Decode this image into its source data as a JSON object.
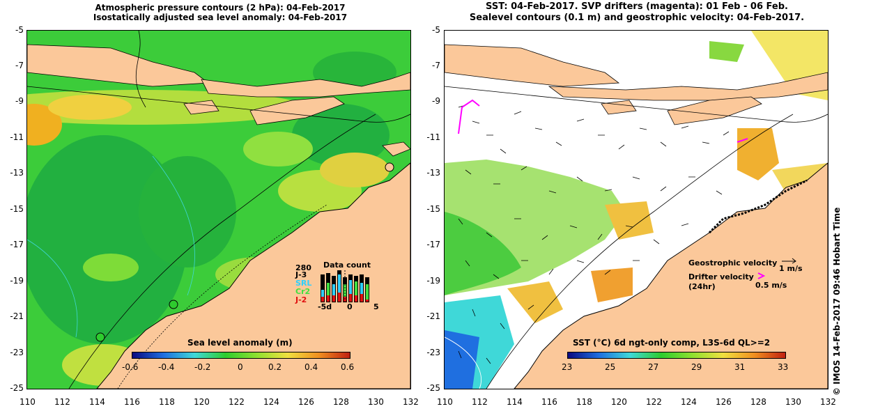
{
  "left_panel": {
    "title_line1": "Atmospheric pressure contours (2 hPa): 04-Feb-2017",
    "title_line2": "Isostatically adjusted sea level anomaly: 04-Feb-2017",
    "colorbar_title": "Sea level anomaly (m)",
    "colorbar_ticks": [
      "-0.6",
      "-0.4",
      "-0.2",
      "0",
      "0.2",
      "0.4",
      "0.6"
    ],
    "colorbar_colors": [
      "#0a0a80",
      "#1f6fe0",
      "#3fd8d8",
      "#2ecc2e",
      "#8ee030",
      "#f0e040",
      "#f09020",
      "#c02010"
    ],
    "data_count": {
      "title": "Data count",
      "max_label": "280",
      "series": [
        {
          "name": "J-3",
          "color": "#000000"
        },
        {
          "name": "SRL",
          "color": "#2fd0ff"
        },
        {
          "name": "Cr2",
          "color": "#40e040"
        },
        {
          "name": "J-2",
          "color": "#e01010"
        }
      ],
      "x_ticks": [
        "-5d",
        "0",
        "5"
      ]
    }
  },
  "right_panel": {
    "title_line1": "SST: 04-Feb-2017. SVP drifters (magenta): 01 Feb - 06 Feb.",
    "title_line2": "Sealevel contours (0.1 m) and geostrophic velocity: 04-Feb-2017.",
    "colorbar_title": "SST (°C) 6d ngt-only comp, L3S-6d QL>=2",
    "colorbar_ticks": [
      "23",
      "25",
      "27",
      "29",
      "31",
      "33"
    ],
    "colorbar_colors": [
      "#0a0a80",
      "#1f6fe0",
      "#3fd8d8",
      "#2ecc2e",
      "#8ee030",
      "#f0e040",
      "#f09020",
      "#c02010"
    ],
    "legend": {
      "geo_label": "Geostrophic velocity",
      "geo_value": "1 m/s",
      "drifter_label": "Drifter velocity",
      "drifter_sub": "(24hr)",
      "drifter_value": "0.5 m/s",
      "drifter_color": "#ff00ff"
    }
  },
  "axes": {
    "x_ticks": [
      "110",
      "112",
      "114",
      "116",
      "118",
      "120",
      "122",
      "124",
      "126",
      "128",
      "130",
      "132"
    ],
    "y_ticks": [
      "-5",
      "-7",
      "-9",
      "-11",
      "-13",
      "-15",
      "-17",
      "-19",
      "-21",
      "-23",
      "-25"
    ]
  },
  "credit": "©  IMOS 14-Feb-2017 09:46 Hobart Time",
  "colors": {
    "land": "#fbc89a",
    "ocean_green": "#34c83a",
    "coast": "#000000"
  }
}
